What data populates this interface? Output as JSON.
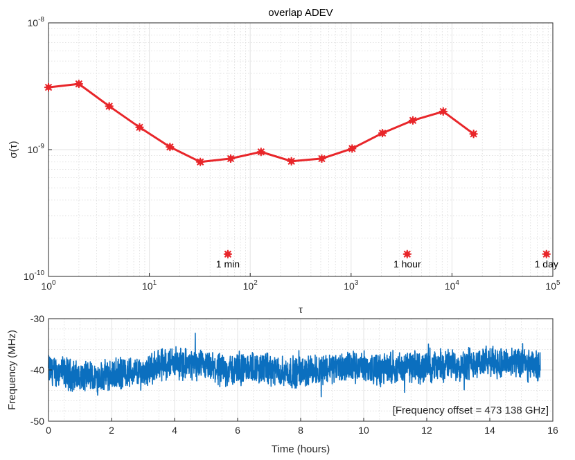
{
  "chart_data": [
    {
      "type": "line",
      "title": "overlap ADEV",
      "xlabel": "τ",
      "ylabel": "σ(τ)",
      "x_scale": "log",
      "y_scale": "log",
      "xlim": [
        1,
        100000
      ],
      "ylim": [
        1e-10,
        1e-08
      ],
      "x_ticks": [
        {
          "base": "10",
          "exp": "0"
        },
        {
          "base": "10",
          "exp": "1"
        },
        {
          "base": "10",
          "exp": "2"
        },
        {
          "base": "10",
          "exp": "3"
        },
        {
          "base": "10",
          "exp": "4"
        },
        {
          "base": "10",
          "exp": "5"
        }
      ],
      "y_ticks": [
        {
          "base": "10",
          "exp": "-10"
        },
        {
          "base": "10",
          "exp": "-9"
        },
        {
          "base": "10",
          "exp": "-8"
        }
      ],
      "grid": true,
      "minor_grid": true,
      "series_color": "#e8262a",
      "series": [
        {
          "x": [
            1,
            2,
            4,
            8,
            16,
            32,
            64,
            128,
            256,
            512,
            1024,
            2048,
            4096,
            8192,
            16384
          ],
          "y": [
            3.1e-09,
            3.3e-09,
            2.2e-09,
            1.5e-09,
            1.05e-09,
            8e-10,
            8.5e-10,
            9.6e-10,
            8.1e-10,
            8.5e-10,
            1.02e-09,
            1.35e-09,
            1.7e-09,
            2e-09,
            1.33e-09
          ]
        }
      ],
      "annotations": [
        {
          "x": 60,
          "y": 1.5e-10,
          "text": "1 min"
        },
        {
          "x": 3600,
          "y": 1.5e-10,
          "text": "1 hour"
        },
        {
          "x": 86400,
          "y": 1.5e-10,
          "text": "1 day"
        }
      ]
    },
    {
      "type": "line",
      "xlabel": "Time (hours)",
      "ylabel": "Frequency (MHz)",
      "xlim": [
        0,
        16
      ],
      "ylim": [
        -50,
        -30
      ],
      "x_ticks": [
        "0",
        "2",
        "4",
        "6",
        "8",
        "10",
        "12",
        "14",
        "16"
      ],
      "y_ticks": [
        "-30",
        "-40",
        "-50"
      ],
      "grid": true,
      "minor_grid": true,
      "series_color": "#0b6fbf",
      "trend_x": [
        0,
        0.5,
        1,
        1.5,
        2,
        2.5,
        3,
        3.5,
        4,
        4.5,
        5,
        5.5,
        6,
        6.5,
        7,
        7.5,
        8,
        8.5,
        9,
        9.5,
        10,
        10.5,
        11,
        11.5,
        12,
        12.5,
        13,
        13.5,
        14,
        14.5,
        15,
        15.6
      ],
      "trend_y": [
        -40,
        -40.5,
        -41.5,
        -41.5,
        -41,
        -40.5,
        -40.5,
        -39,
        -38.5,
        -39,
        -39.5,
        -40,
        -40,
        -39.5,
        -40,
        -40.5,
        -40.5,
        -40,
        -39.5,
        -39.5,
        -39.5,
        -40,
        -39.5,
        -39.5,
        -39.5,
        -39,
        -39,
        -38.5,
        -38.5,
        -38.5,
        -39,
        -39.5
      ],
      "noise_amplitude": 2.5,
      "annotation": "[Frequency offset = 473 138 GHz]"
    }
  ]
}
